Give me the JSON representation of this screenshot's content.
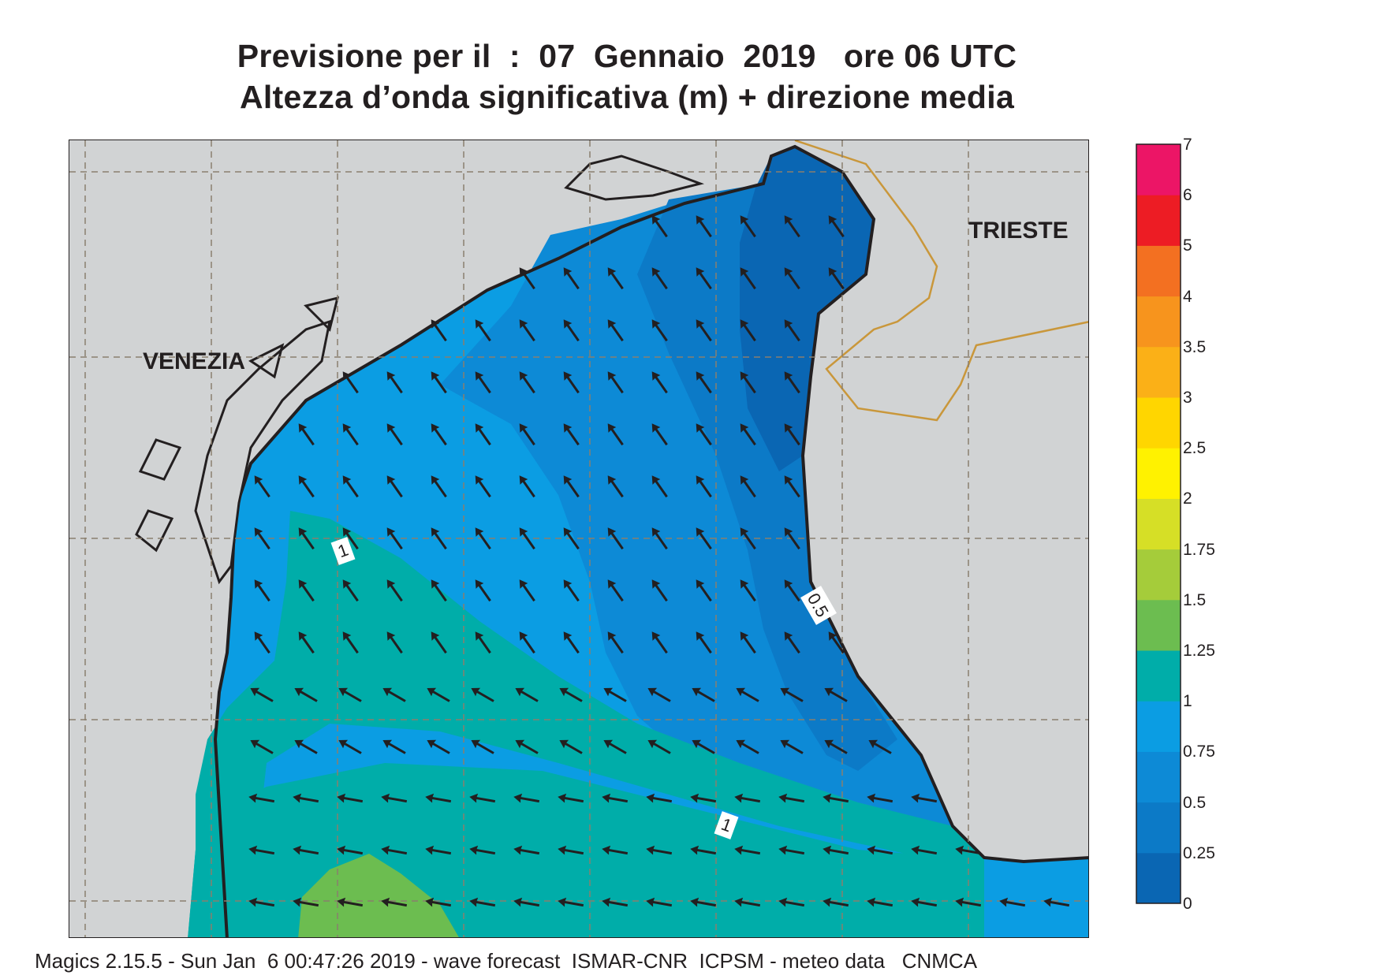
{
  "title": {
    "line1": "Previsione per il  :  07  Gennaio  2019   ore 06 UTC",
    "line2": "Altezza d’onda significativa (m) + direzione media"
  },
  "map": {
    "cities": [
      {
        "name": "VENEZIA"
      },
      {
        "name": "TRIESTE"
      }
    ],
    "contour_labels": [
      "1",
      "0.5",
      "1"
    ],
    "arrow_direction": "northwest (waves from south-east)",
    "colors": {
      "land": "#d1d3d4",
      "band_0": "#0a66b3",
      "band_025": "#0c7ac7",
      "band_05": "#0d8ad6",
      "band_075": "#0b9de3",
      "band_1": "#00ada9",
      "band_125": "#6cbd50",
      "border": "#c9973b"
    }
  },
  "colorbar": {
    "levels": [
      "0",
      "0.25",
      "0.5",
      "0.75",
      "1",
      "1.25",
      "1.5",
      "1.75",
      "2",
      "2.5",
      "3",
      "3.5",
      "4",
      "5",
      "6",
      "7"
    ],
    "colors": [
      "#0a66b3",
      "#0c7ac7",
      "#0d8ad6",
      "#0b9de3",
      "#00ada9",
      "#6cbd50",
      "#a5cc3a",
      "#d6df26",
      "#fff200",
      "#ffd600",
      "#fbb017",
      "#f7941d",
      "#f37021",
      "#ed1c24",
      "#ec1566"
    ]
  },
  "footer": "Magics 2.15.5 - Sun Jan  6 00:47:26 2019 - wave forecast  ISMAR-CNR  ICPSM - meteo data   CNMCA"
}
